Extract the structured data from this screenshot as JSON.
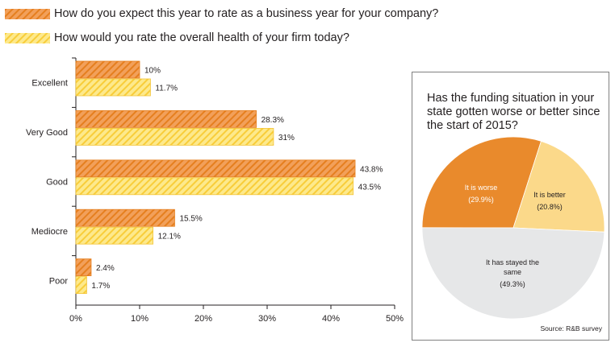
{
  "legend": [
    {
      "label": "How do you expect this year to rate as a business year for your company?",
      "color": "#f4a057"
    },
    {
      "label": "How would you rate the overall health of your firm today?",
      "color": "#fbe37a"
    }
  ],
  "chart_data": [
    {
      "type": "bar",
      "orientation": "horizontal",
      "categories": [
        "Excellent",
        "Very Good",
        "Good",
        "Mediocre",
        "Poor"
      ],
      "series": [
        {
          "name": "How do you expect this year to rate as a business year for your company?",
          "values": [
            10,
            28.3,
            43.8,
            15.5,
            2.4
          ],
          "labels": [
            "10%",
            "28.3%",
            "43.8%",
            "15.5%",
            "2.4%"
          ],
          "color": "#f4a057"
        },
        {
          "name": "How would you rate the overall health of your firm today?",
          "values": [
            11.7,
            31,
            43.5,
            12.1,
            1.7
          ],
          "labels": [
            "11.7%",
            "31%",
            "43.5%",
            "12.1%",
            "1.7%"
          ],
          "color": "#fbe37a"
        }
      ],
      "xlim": [
        0,
        50
      ],
      "xticks": [
        "0%",
        "10%",
        "20%",
        "30%",
        "40%",
        "50%"
      ],
      "xlabel": "",
      "ylabel": "",
      "grid": false
    },
    {
      "type": "pie",
      "title": "Has the funding situation in your state gotten worse or better since the start of 2015?",
      "slices": [
        {
          "label": "It is worse",
          "pct_label": "(29.9%)",
          "value": 29.9,
          "color": "#e98a2c",
          "text_color": "#ffffff"
        },
        {
          "label": "It is better",
          "pct_label": "(20.8%)",
          "value": 20.8,
          "color": "#fbd98a",
          "text_color": "#231f20"
        },
        {
          "label": "It has stayed the same",
          "pct_label": "(49.3%)",
          "value": 49.3,
          "color": "#e6e7e8",
          "text_color": "#231f20"
        }
      ],
      "source": "Source: R&B survey"
    }
  ]
}
